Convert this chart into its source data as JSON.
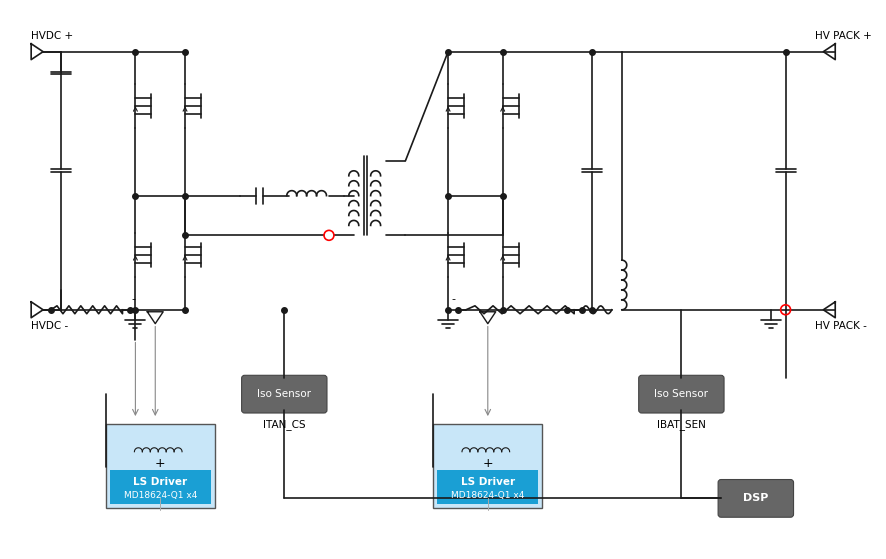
{
  "bg_color": "#ffffff",
  "line_color": "#000000",
  "line_width": 1.2,
  "thin_line": 0.8,
  "dot_size": 4,
  "figsize": [
    8.86,
    5.59
  ],
  "dpi": 100,
  "labels": {
    "hvdc_plus": "HVDC +",
    "hvdc_minus": "HVDC -",
    "hv_pack_plus": "HV PACK +",
    "hv_pack_minus": "HV PACK -",
    "itan_cs": "ITAN_CS",
    "ibat_sen": "IBAT_SEN",
    "ls_driver_line1": "LS Driver",
    "ls_driver_line2": "MD18624-Q1 x4",
    "iso_sensor": "Iso Sensor",
    "dsp": "DSP"
  },
  "colors": {
    "ls_driver_box_outer": "#b8d8f0",
    "ls_driver_box_inner": "#29aae1",
    "iso_sensor_box": "#666666",
    "dsp_box": "#666666",
    "red_circle": "#ff0000",
    "dark_line": "#1a1a1a",
    "gray_text": "#ffffff"
  }
}
